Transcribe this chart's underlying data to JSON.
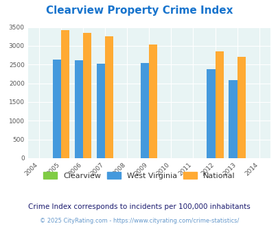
{
  "title": "Clearview Property Crime Index",
  "title_color": "#1874cd",
  "years": [
    2004,
    2005,
    2006,
    2007,
    2008,
    2009,
    2010,
    2011,
    2012,
    2013,
    2014
  ],
  "bar_years": [
    2005,
    2006,
    2007,
    2009,
    2012,
    2013
  ],
  "clearview": [
    0,
    0,
    0,
    0,
    0,
    0
  ],
  "west_virginia": [
    2630,
    2620,
    2530,
    2540,
    2380,
    2090
  ],
  "national": [
    3420,
    3340,
    3260,
    3040,
    2860,
    2710
  ],
  "clearview_color": "#80cc44",
  "wv_color": "#4499dd",
  "national_color": "#ffaa33",
  "bg_color": "#ddeef0",
  "plot_bg": "#e8f4f4",
  "ylim": [
    0,
    3500
  ],
  "yticks": [
    0,
    500,
    1000,
    1500,
    2000,
    2500,
    3000,
    3500
  ],
  "subtitle": "Crime Index corresponds to incidents per 100,000 inhabitants",
  "footer": "© 2025 CityRating.com - https://www.cityrating.com/crime-statistics/",
  "legend_labels": [
    "Clearview",
    "West Virginia",
    "National"
  ],
  "bar_width": 0.38
}
